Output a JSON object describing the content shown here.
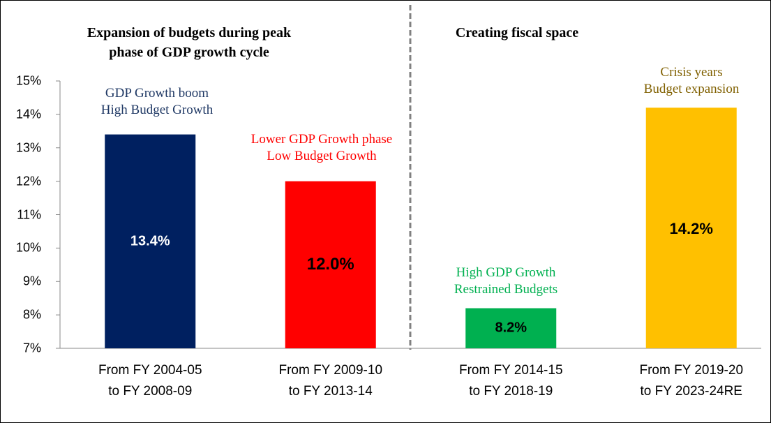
{
  "chart_data": {
    "type": "bar",
    "section_titles": [
      "Expansion of budgets during peak\nphase of GDP growth cycle",
      "Creating fiscal space"
    ],
    "categories": [
      "From FY 2004-05\nto FY 2008-09",
      "From FY 2009-10\nto FY 2013-14",
      "From FY 2014-15\nto FY 2018-19",
      "From FY 2019-20\nto FY 2023-24RE"
    ],
    "values": [
      13.4,
      12.0,
      8.2,
      14.2
    ],
    "value_labels": [
      "13.4%",
      "12.0%",
      "8.2%",
      "14.2%"
    ],
    "colors": [
      "#002060",
      "#ff0000",
      "#00b050",
      "#ffc000"
    ],
    "annotations": [
      {
        "text": "GDP Growth boom\nHigh Budget Growth",
        "color": "#1f3864"
      },
      {
        "text": "Lower GDP Growth phase\nLow Budget Growth",
        "color": "#ff0000"
      },
      {
        "text": "High GDP Growth\nRestrained Budgets",
        "color": "#00b050"
      },
      {
        "text": "Crisis years\nBudget expansion",
        "color": "#806000"
      }
    ],
    "ylim": [
      7,
      15
    ],
    "yticks": [
      {
        "value": 7,
        "label": "7%"
      },
      {
        "value": 8,
        "label": "8%"
      },
      {
        "value": 9,
        "label": "9%"
      },
      {
        "value": 10,
        "label": "10%"
      },
      {
        "value": 11,
        "label": "11%"
      },
      {
        "value": 12,
        "label": "12%"
      },
      {
        "value": 13,
        "label": "13%"
      },
      {
        "value": 14,
        "label": "14%"
      },
      {
        "value": 15,
        "label": "15%"
      }
    ]
  }
}
